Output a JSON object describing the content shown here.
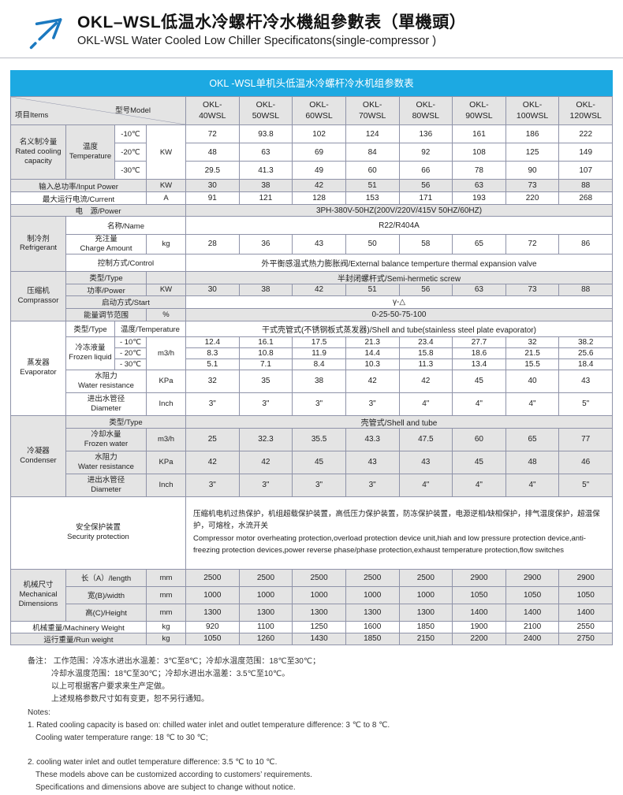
{
  "header": {
    "title_cn": "OKL–WSL低温水冷螺杆冷水機組參數表（單機頭）",
    "title_en": "OKL-WSL Water Cooled Low Chiller Specificatons(single-compressor )"
  },
  "colors": {
    "banner": "#1ca9e2",
    "row_shade": "#e4e4e4",
    "grid": "#8f93a9",
    "logo_blue": "#1b79c0"
  },
  "table": {
    "banner_title": "OKL -WSL单机头低温水冷螺杆冷水机组参数表",
    "items_label": "项目Items",
    "model_label": "型号Model",
    "model_prefix": "OKL-",
    "models": [
      "40WSL",
      "50WSL",
      "60WSL",
      "70WSL",
      "80WSL",
      "90WSL",
      "100WSL",
      "120WSL"
    ],
    "labels": {
      "capacity": "名义制冷量\nRated cooling\ncapacity",
      "temperature": "温度\nTemperature",
      "t_m10": "-10℃",
      "t_m20": "-20℃",
      "t_m30": "-30℃",
      "input_power": "输入总功率/Input Power",
      "current": "最大运行电流/Current",
      "power": "电　源/Power",
      "refrigerant": "制冷剂\nRefrigerant",
      "name": "名称/Name",
      "charge": "充注量\nCharge Amount",
      "control": "控制方式/Control",
      "compressor": "压缩机\nComprassor",
      "type": "类型/Type",
      "comp_power": "功率/Power",
      "start": "启动方式/Start",
      "energy": "能量调节范围",
      "evaporator": "蒸发器\nEvaporator",
      "temperature2": "温度/Temperature",
      "frozen_liquid": "冷冻液量\nFrozen liquid",
      "e_m10": "- 10℃",
      "e_m20": "- 20℃",
      "e_m30": "- 30℃",
      "water_res": "水阻力\nWater resistance",
      "diameter": "进出水管径\nDiameter",
      "condenser": "冷凝器\nCondenser",
      "cooling_water": "冷却水量\nFrozen water",
      "security": "安全保护装置\nSecurity protection",
      "mech": "机械尺寸\nMechanical\nDimensions",
      "length": "长（A）/length",
      "width": "宽(B)/width",
      "height": "高(C)/Height",
      "mach_weight": "机械重量/Machinery Weight",
      "run_weight": "运行重量/Run weight"
    },
    "units": {
      "kw": "KW",
      "a": "A",
      "kg": "kg",
      "pct": "%",
      "m3h": "m3/h",
      "kpa": "KPa",
      "inch": "Inch",
      "mm": "mm"
    },
    "values": {
      "cap_m10": [
        "72",
        "93.8",
        "102",
        "124",
        "136",
        "161",
        "186",
        "222"
      ],
      "cap_m20": [
        "48",
        "63",
        "69",
        "84",
        "92",
        "108",
        "125",
        "149"
      ],
      "cap_m30": [
        "29.5",
        "41.3",
        "49",
        "60",
        "66",
        "78",
        "90",
        "107"
      ],
      "input_power": [
        "30",
        "38",
        "42",
        "51",
        "56",
        "63",
        "73",
        "88"
      ],
      "current": [
        "91",
        "121",
        "128",
        "153",
        "171",
        "193",
        "220",
        "268"
      ],
      "power_supply": "3PH-380V-50HZ(200V/220V/415V  50HZ/60HZ)",
      "ref_name": "R22/R404A",
      "charge": [
        "28",
        "36",
        "43",
        "50",
        "58",
        "65",
        "72",
        "86"
      ],
      "control_type": "外平衡感温式热力膨胀阀/External balance temperture thermal expansion valve",
      "comp_type": "半封闭螺杆式/Semi-hermetic screw",
      "comp_power": [
        "30",
        "38",
        "42",
        "51",
        "56",
        "63",
        "73",
        "88"
      ],
      "start_mode": "γ-△",
      "energy_range": "0-25-50-75-100",
      "evap_type": "干式壳管式(不锈钢板式蒸发器)/Shell and tube(stainless steel plate evaporator)",
      "evap_m10": [
        "12.4",
        "16.1",
        "17.5",
        "21.3",
        "23.4",
        "27.7",
        "32",
        "38.2"
      ],
      "evap_m20": [
        "8.3",
        "10.8",
        "11.9",
        "14.4",
        "15.8",
        "18.6",
        "21.5",
        "25.6"
      ],
      "evap_m30": [
        "5.1",
        "7.1",
        "8.4",
        "10.3",
        "11.3",
        "13.4",
        "15.5",
        "18.4"
      ],
      "evap_wr": [
        "32",
        "35",
        "38",
        "42",
        "42",
        "45",
        "40",
        "43"
      ],
      "evap_dia": [
        "3\"",
        "3\"",
        "3\"",
        "3\"",
        "4\"",
        "4\"",
        "4\"",
        "5\""
      ],
      "cond_type": "壳管式/Shell and tube",
      "cond_flow": [
        "25",
        "32.3",
        "35.5",
        "43.3",
        "47.5",
        "60",
        "65",
        "77"
      ],
      "cond_wr": [
        "42",
        "42",
        "45",
        "43",
        "43",
        "45",
        "48",
        "46"
      ],
      "cond_dia": [
        "3\"",
        "3\"",
        "3\"",
        "3\"",
        "4\"",
        "4\"",
        "4\"",
        "5\""
      ],
      "security_cn": "压缩机电机过热保护，机组超载保护装置，高低压力保护装置，防冻保护装置，电源逆相/缺相保护，排气温度保护，超温保护，可熔栓，水流开关",
      "security_en": "Compressor motor overheating protection,overload protection device unit,hiah and low pressure protection device,anti-freezing protection devices,power reverse phase/phase protection,exhaust temperature protection,flow switches",
      "length": [
        "2500",
        "2500",
        "2500",
        "2500",
        "2500",
        "2900",
        "2900",
        "2900"
      ],
      "width": [
        "1000",
        "1000",
        "1000",
        "1000",
        "1000",
        "1050",
        "1050",
        "1050"
      ],
      "height": [
        "1300",
        "1300",
        "1300",
        "1300",
        "1300",
        "1400",
        "1400",
        "1400"
      ],
      "mach_weight": [
        "920",
        "1100",
        "1250",
        "1600",
        "1850",
        "1900",
        "2100",
        "2550"
      ],
      "run_weight": [
        "1050",
        "1260",
        "1430",
        "1850",
        "2150",
        "2200",
        "2400",
        "2750"
      ]
    }
  },
  "notes": {
    "cn1": "备注：  工作范围：冷冻水进出水温差：3℃至8℃；冷却水温度范围：18℃至30℃；",
    "cn2": "冷却水温度范围：18℃至30℃；冷却水进出水温差：3.5℃至10℃。",
    "cn3": "以上可根据客户要求来生产定做。",
    "cn4": "上述规格参数尺寸如有变更，恕不另行通知。",
    "en_title": "Notes:",
    "en1": "1. Rated cooling capacity is based on: chilled water inlet and outlet temperature  difference: 3 ℃ to 8 ℃.",
    "en2": "Cooling water temperature  range: 18 ℃ to 30 ℃;",
    "en3": "2. cooling water inlet and outlet temperature  difference: 3.5 ℃ to 10 ℃.",
    "en4": "These models above can be customized according to customers’   requirements.",
    "en5": "Specifications  and dimensions above are subject to change without notice."
  }
}
